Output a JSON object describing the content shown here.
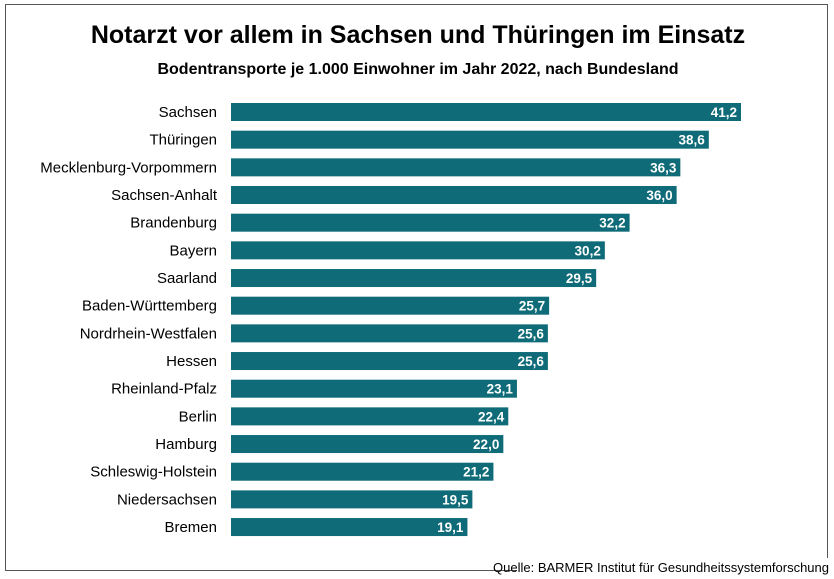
{
  "chart_data": {
    "type": "bar",
    "orientation": "horizontal",
    "title": "Notarzt vor allem in Sachsen und Thüringen im Einsatz",
    "subtitle": "Bodentransporte je 1.000 Einwohner im Jahr 2022, nach Bundesland",
    "categories": [
      "Sachsen",
      "Thüringen",
      "Mecklenburg-Vorpommern",
      "Sachsen-Anhalt",
      "Brandenburg",
      "Bayern",
      "Saarland",
      "Baden-Württemberg",
      "Nordrhein-Westfalen",
      "Hessen",
      "Rheinland-Pfalz",
      "Berlin",
      "Hamburg",
      "Schleswig-Holstein",
      "Niedersachsen",
      "Bremen"
    ],
    "values": [
      41.2,
      38.6,
      36.3,
      36.0,
      32.2,
      30.2,
      29.5,
      25.7,
      25.6,
      25.6,
      23.1,
      22.4,
      22.0,
      21.2,
      19.5,
      19.1
    ],
    "data_labels": [
      "41,2",
      "38,6",
      "36,3",
      "36,0",
      "32,2",
      "30,2",
      "29,5",
      "25,7",
      "25,6",
      "25,6",
      "23,1",
      "22,4",
      "22,0",
      "21,2",
      "19,5",
      "19,1"
    ],
    "xlim": [
      0,
      41.2
    ],
    "grid": false,
    "bar_color": "#0f6b78",
    "source": "Quelle: BARMER Institut für Gesundheitssystemforschung"
  }
}
